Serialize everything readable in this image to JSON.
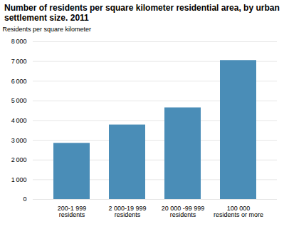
{
  "chart_data": {
    "type": "bar",
    "title": "Number of residents per square kilometer residential area, by urban\nsettlement size. 2011",
    "ylabel": "Residents per square kilometer",
    "categories": [
      "200-1 999\nresidents",
      "2 000-19 999\nresidents",
      "20 000 -99 999\nresidents",
      "100 000\nresidents or more"
    ],
    "values": [
      2850,
      3780,
      4650,
      7050
    ],
    "color": "#4a8db7",
    "ylim": [
      0,
      8000
    ],
    "yticks": [
      0,
      {
        "value": 1000,
        "label": "1 000"
      },
      {
        "value": 2000,
        "label": "2 000"
      },
      {
        "value": 3000,
        "label": "3 000"
      },
      {
        "value": 4000,
        "label": "4 000"
      },
      {
        "value": 5000,
        "label": "5 000"
      },
      {
        "value": 6000,
        "label": "6 000"
      },
      {
        "value": 7000,
        "label": "7 000"
      },
      {
        "value": 8000,
        "label": "8 000"
      }
    ],
    "grid": true
  }
}
